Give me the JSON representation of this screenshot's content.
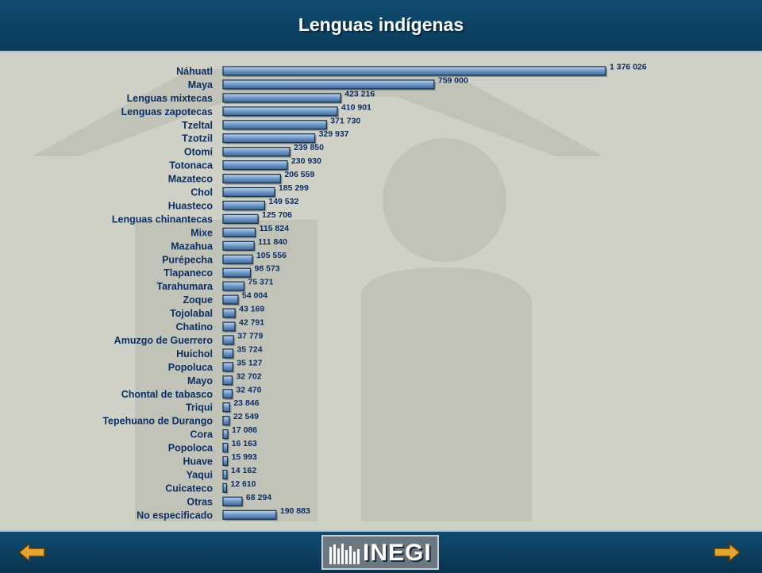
{
  "page": {
    "title": "Lenguas indígenas"
  },
  "colors": {
    "header": "#0f4b70",
    "background": "#cfd0c6",
    "bar_fill": "#6f96c4",
    "bar_border": "#0d2e4d",
    "text": "#0c2f63",
    "arrow": "#e2a433"
  },
  "footer": {
    "logo_text": "INEGI",
    "prev_icon": "arrow-left-icon",
    "next_icon": "arrow-right-icon"
  },
  "chart_data": {
    "type": "bar",
    "orientation": "horizontal",
    "title": "Lenguas indígenas",
    "xlabel": "",
    "ylabel": "",
    "grid": false,
    "xlim": [
      0,
      1400000
    ],
    "categories": [
      "Náhuatl",
      "Maya",
      "Lenguas mixtecas",
      "Lenguas zapotecas",
      "Tzeltal",
      "Tzotzil",
      "Otomí",
      "Totonaca",
      "Mazateco",
      "Chol",
      "Huasteco",
      "Lenguas chinantecas",
      "Mixe",
      "Mazahua",
      "Purépecha",
      "Tlapaneco",
      "Tarahumara",
      "Zoque",
      "Tojolabal",
      "Chatino",
      "Amuzgo de Guerrero",
      "Huichol",
      "Popoluca",
      "Mayo",
      "Chontal de tabasco",
      "Triqui",
      "Tepehuano de Durango",
      "Cora",
      "Popoloca",
      "Huave",
      "Yaqui",
      "Cuicateco",
      "Otras",
      "No especificado"
    ],
    "values": [
      1376026,
      759000,
      423216,
      410901,
      371730,
      329937,
      239850,
      230930,
      206559,
      185299,
      149532,
      125706,
      115824,
      111840,
      105556,
      98573,
      75371,
      54004,
      43169,
      42791,
      37779,
      35724,
      35127,
      32702,
      32470,
      23846,
      22549,
      17086,
      16163,
      15993,
      14162,
      12610,
      68294,
      190883
    ],
    "value_labels": [
      "1 376 026",
      "759 000",
      "423 216",
      "410 901",
      "371 730",
      "329 937",
      "239 850",
      "230 930",
      "206 559",
      "185 299",
      "149 532",
      "125 706",
      "115 824",
      "111 840",
      "105 556",
      "98 573",
      "75 371",
      "54 004",
      "43 169",
      "42 791",
      "37 779",
      "35 724",
      "35 127",
      "32 702",
      "32 470",
      "23 846",
      "22 549",
      "17 086",
      "16 163",
      "15 993",
      "14 162",
      "12 610",
      "68 294",
      "190 883"
    ]
  }
}
